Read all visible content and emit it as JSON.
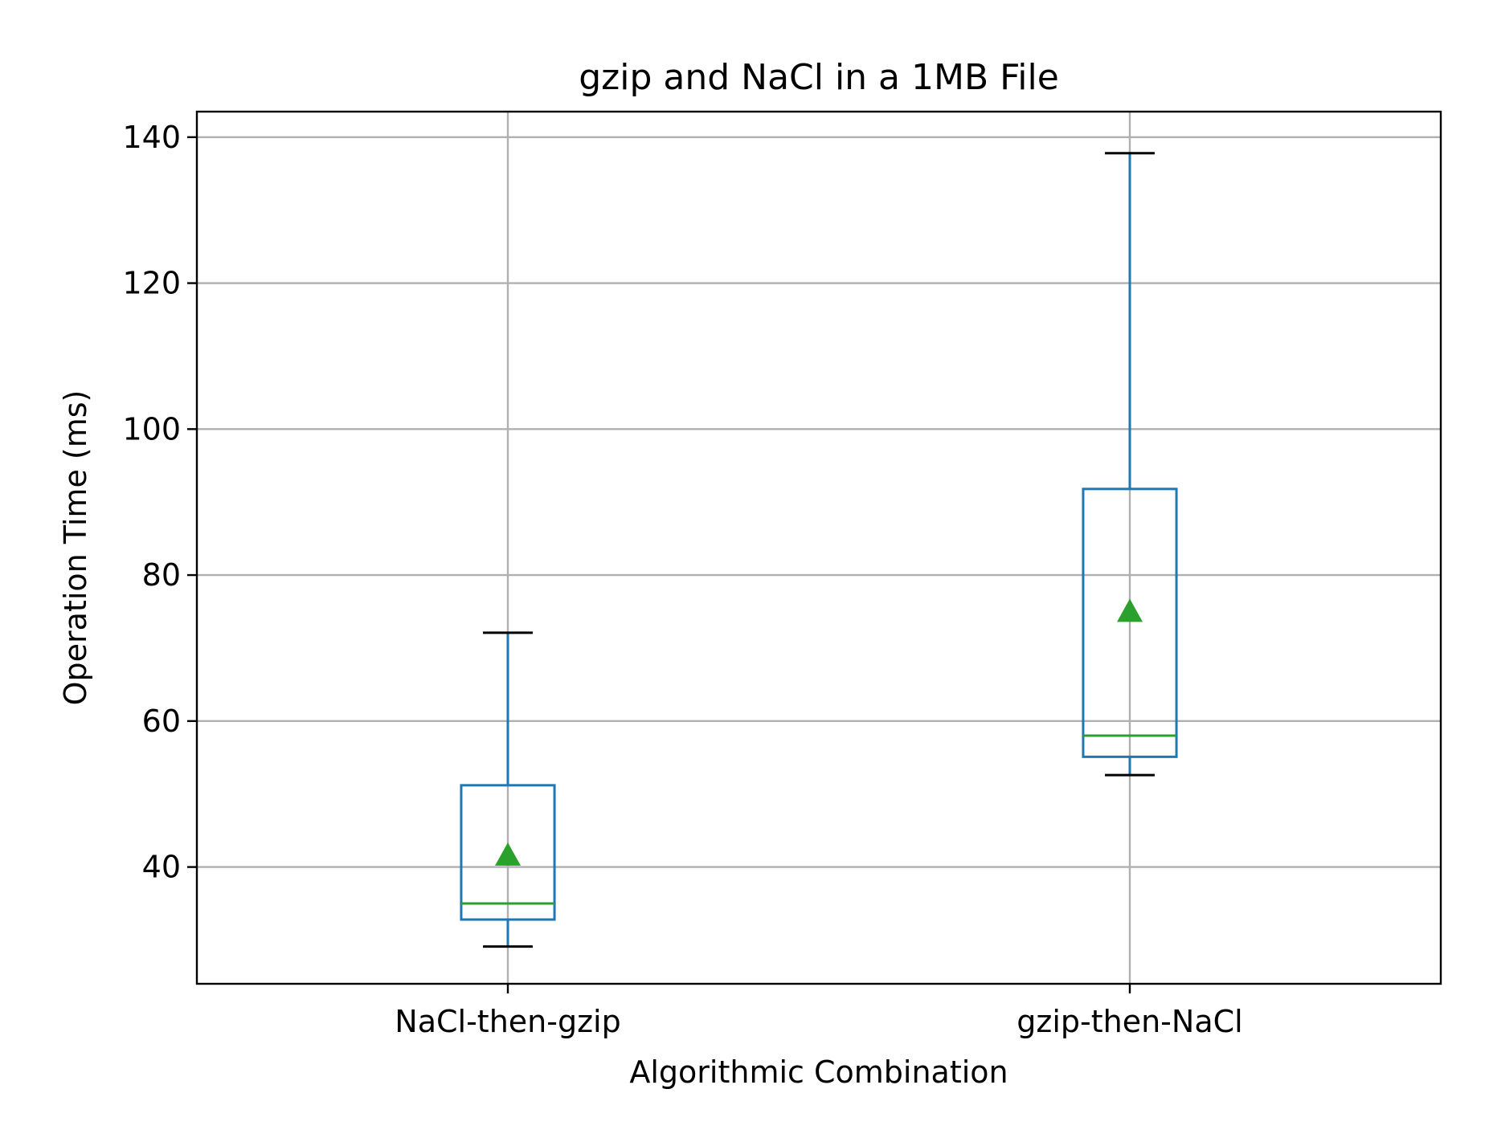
{
  "chart_data": {
    "type": "box",
    "title": "gzip and NaCl in a 1MB File",
    "xlabel": "Algorithmic Combination",
    "ylabel": "Operation Time (ms)",
    "categories": [
      "NaCl-then-gzip",
      "gzip-then-NaCl"
    ],
    "ylim": [
      24,
      143.5
    ],
    "yticks": [
      40,
      60,
      80,
      100,
      120,
      140
    ],
    "grid": true,
    "boxes": [
      {
        "category": "NaCl-then-gzip",
        "whisker_low": 29.1,
        "q1": 32.8,
        "median": 35.0,
        "q3": 51.2,
        "whisker_high": 72.1,
        "mean": 41.6
      },
      {
        "category": "gzip-then-NaCl",
        "whisker_low": 52.6,
        "q1": 55.1,
        "median": 58.0,
        "q3": 91.8,
        "whisker_high": 137.8,
        "mean": 75.0
      }
    ],
    "colors": {
      "box": "#1f77b4",
      "median": "#2ca02c",
      "mean": "#2ca02c",
      "whisker_cap": "#000000"
    }
  }
}
